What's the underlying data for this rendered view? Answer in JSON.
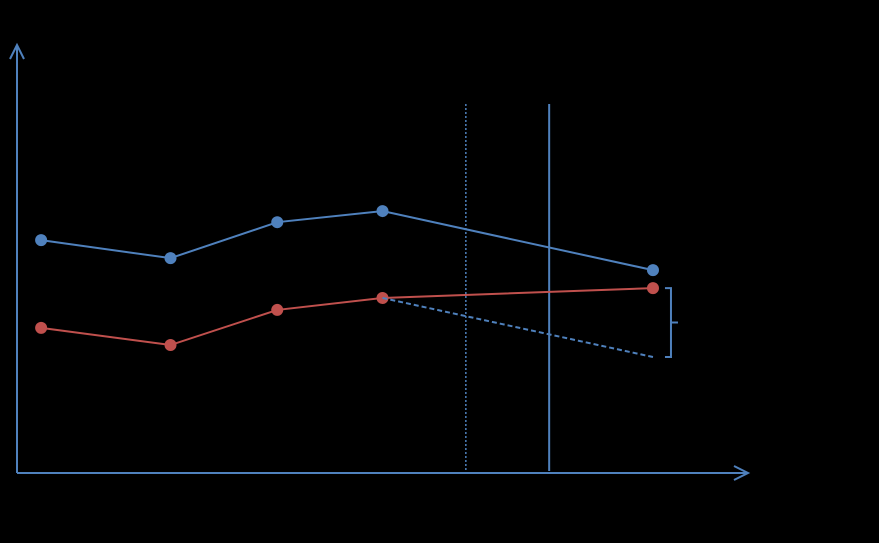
{
  "chart_data": {
    "type": "line",
    "x": [
      0.33,
      2.1,
      3.56,
      5.0,
      8.7
    ],
    "xlim": [
      0,
      10
    ],
    "ylim": [
      0,
      10
    ],
    "series": [
      {
        "color": "#4f81bd",
        "values": [
          5.44,
          5.02,
          5.86,
          6.12,
          4.74
        ],
        "dash": false,
        "markers": true
      },
      {
        "color": "#c0504d",
        "values": [
          3.39,
          2.99,
          3.81,
          4.09,
          4.32
        ],
        "dash": false,
        "markers": true
      },
      {
        "color": "#4f81bd",
        "values": [
          null,
          null,
          null,
          4.09,
          2.71
        ],
        "dash": true,
        "markers": false
      }
    ],
    "vlines": [
      {
        "x": 6.14,
        "dotted": true,
        "color": "#4f81bd"
      },
      {
        "x": 7.28,
        "dotted": false,
        "color": "#4f81bd"
      }
    ],
    "axis_color": "#4f81bd"
  }
}
